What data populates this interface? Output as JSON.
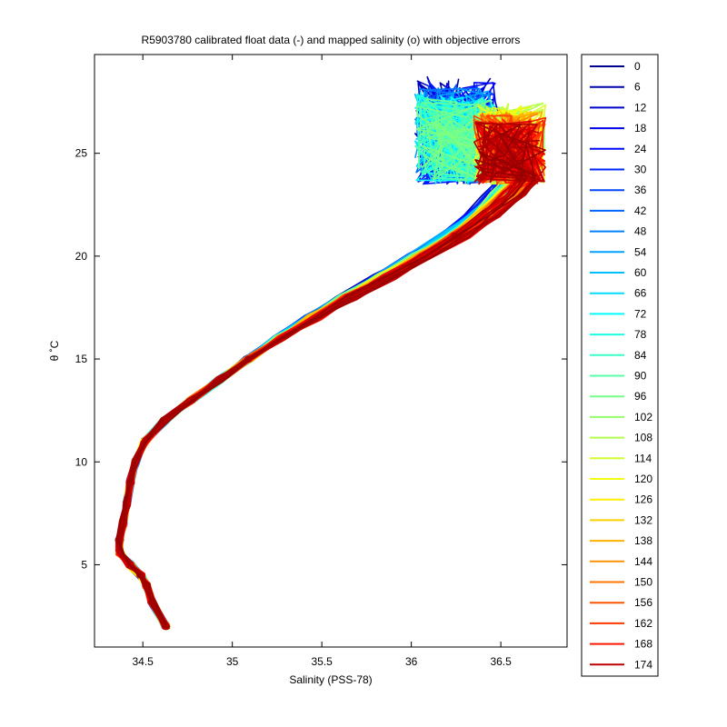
{
  "chart_data": {
    "type": "line",
    "title": "R5903780 calibrated float data (-) and mapped salinity (o) with objective errors",
    "xlabel": "Salinity (PSS-78)",
    "ylabel": "θ ˚C",
    "xlim": [
      34.23,
      36.87
    ],
    "ylim": [
      1.0,
      29.8
    ],
    "xticks": [
      34.5,
      35,
      35.5,
      36,
      36.5
    ],
    "xtick_labels": [
      "34.5",
      "35",
      "35.5",
      "36",
      "36.5"
    ],
    "yticks": [
      5,
      10,
      15,
      20,
      25
    ],
    "ytick_labels": [
      "5",
      "10",
      "15",
      "20",
      "25"
    ],
    "grid": false,
    "legend_position": "right-outside",
    "legend": [
      "0",
      "6",
      "12",
      "18",
      "24",
      "30",
      "36",
      "42",
      "48",
      "54",
      "60",
      "66",
      "72",
      "78",
      "84",
      "90",
      "96",
      "102",
      "108",
      "114",
      "120",
      "126",
      "132",
      "138",
      "144",
      "150",
      "156",
      "162",
      "168",
      "174"
    ],
    "legend_colors": [
      "#00008f",
      "#0000ad",
      "#0000cc",
      "#0000ea",
      "#0008ff",
      "#0026ff",
      "#0045ff",
      "#0063ff",
      "#0082ff",
      "#00a0ff",
      "#00bfff",
      "#00ddff",
      "#00fcff",
      "#1bffe4",
      "#39ffc6",
      "#58ffa7",
      "#76ff89",
      "#95ff6a",
      "#b4ff4b",
      "#d2ff2d",
      "#f1ff0e",
      "#ffee00",
      "#ffcf00",
      "#ffb100",
      "#ff9200",
      "#ff7400",
      "#ff5500",
      "#ff3700",
      "#ff1800",
      "#c00000"
    ],
    "series_count": 180,
    "series_mean_profile": [
      {
        "x": 34.63,
        "y": 2.0
      },
      {
        "x": 34.55,
        "y": 3.2
      },
      {
        "x": 34.52,
        "y": 4.0
      },
      {
        "x": 34.49,
        "y": 4.5
      },
      {
        "x": 34.43,
        "y": 5.0
      },
      {
        "x": 34.37,
        "y": 5.6
      },
      {
        "x": 34.37,
        "y": 6.2
      },
      {
        "x": 34.39,
        "y": 7.0
      },
      {
        "x": 34.41,
        "y": 8.0
      },
      {
        "x": 34.43,
        "y": 9.0
      },
      {
        "x": 34.46,
        "y": 10.0
      },
      {
        "x": 34.51,
        "y": 11.0
      },
      {
        "x": 34.62,
        "y": 12.0
      },
      {
        "x": 34.77,
        "y": 13.0
      },
      {
        "x": 34.93,
        "y": 14.0
      },
      {
        "x": 35.09,
        "y": 15.0
      },
      {
        "x": 35.26,
        "y": 16.0
      },
      {
        "x": 35.45,
        "y": 17.0
      },
      {
        "x": 35.64,
        "y": 18.0
      },
      {
        "x": 35.85,
        "y": 19.0
      },
      {
        "x": 36.05,
        "y": 20.0
      },
      {
        "x": 36.24,
        "y": 21.0
      },
      {
        "x": 36.4,
        "y": 22.0
      },
      {
        "x": 36.52,
        "y": 23.0
      },
      {
        "x": 36.6,
        "y": 23.7
      }
    ],
    "warm_surface_x_range": {
      "early": [
        36.02,
        36.47
      ],
      "late": [
        36.35,
        36.75
      ]
    },
    "warm_surface_y_range": [
      23.5,
      28.8
    ]
  }
}
